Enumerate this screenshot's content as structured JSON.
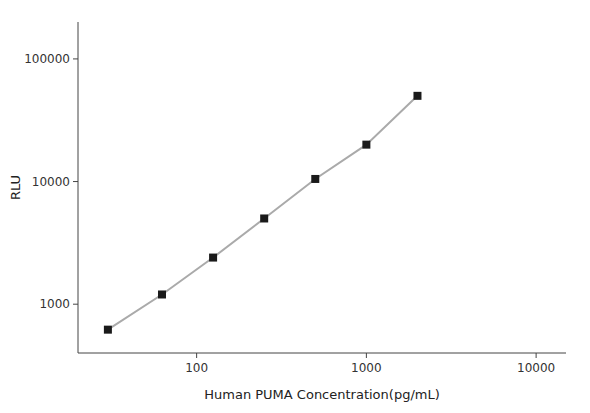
{
  "chart_data": {
    "type": "line",
    "xlabel": "Human PUMA Concentration(pg/mL)",
    "ylabel": "RLU",
    "x": [
      30,
      62.5,
      125,
      250,
      500,
      1000,
      2000
    ],
    "series": [
      {
        "type": "line",
        "color": "#aaaaaa",
        "values": [
          620,
          1200,
          2400,
          5000,
          10500,
          20000,
          50000
        ]
      },
      {
        "type": "scatter",
        "color": "#1a1a1a",
        "marker": "square",
        "values": [
          620,
          1200,
          2400,
          5000,
          10500,
          20000,
          50000
        ]
      }
    ],
    "xlim": [
      20,
      15000
    ],
    "ylim": [
      400,
      200000
    ],
    "xticks": [
      100,
      1000,
      10000
    ],
    "yticks": [
      1000,
      10000,
      100000
    ],
    "log": true,
    "grid": false
  }
}
